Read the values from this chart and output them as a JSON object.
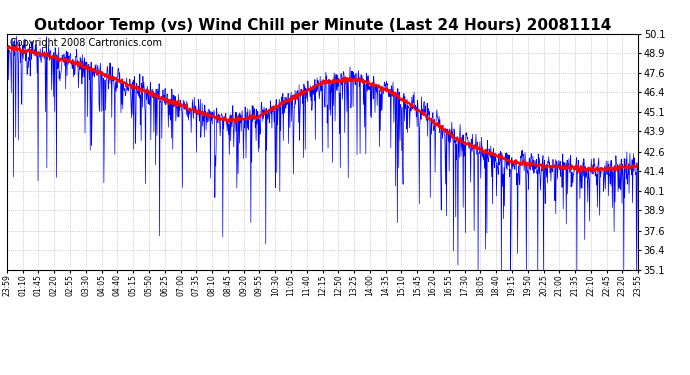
{
  "title": "Outdoor Temp (vs) Wind Chill per Minute (Last 24 Hours) 20081114",
  "copyright_text": "Copyright 2008 Cartronics.com",
  "ylim": [
    35.1,
    50.1
  ],
  "yticks": [
    35.1,
    36.4,
    37.6,
    38.9,
    40.1,
    41.4,
    42.6,
    43.9,
    45.1,
    46.4,
    47.6,
    48.9,
    50.1
  ],
  "xtick_labels": [
    "23:59",
    "01:10",
    "01:45",
    "02:20",
    "02:55",
    "03:30",
    "04:05",
    "04:40",
    "05:15",
    "05:50",
    "06:25",
    "07:00",
    "07:35",
    "08:10",
    "08:45",
    "09:20",
    "09:55",
    "10:30",
    "11:05",
    "11:40",
    "12:15",
    "12:50",
    "13:25",
    "14:00",
    "14:35",
    "15:10",
    "15:45",
    "16:20",
    "16:55",
    "17:30",
    "18:05",
    "18:40",
    "19:15",
    "19:50",
    "20:25",
    "21:00",
    "21:35",
    "22:10",
    "22:45",
    "23:20",
    "23:55"
  ],
  "background_color": "#ffffff",
  "grid_color": "#aaaaaa",
  "blue_line_color": "#0000ff",
  "red_line_color": "#ff0000",
  "title_fontsize": 11,
  "copyright_fontsize": 7,
  "red_base_x": [
    0,
    50,
    150,
    250,
    370,
    430,
    500,
    570,
    650,
    720,
    800,
    870,
    950,
    1020,
    1100,
    1150,
    1200,
    1260,
    1310,
    1360,
    1440
  ],
  "red_base_y": [
    49.2,
    49.0,
    48.3,
    47.2,
    45.8,
    45.2,
    44.6,
    44.8,
    46.0,
    47.0,
    47.2,
    46.5,
    45.0,
    43.5,
    42.5,
    42.0,
    41.8,
    41.6,
    41.5,
    41.5,
    41.7
  ],
  "blue_base_x": [
    0,
    50,
    150,
    250,
    370,
    430,
    500,
    570,
    650,
    720,
    800,
    870,
    950,
    1020,
    1100,
    1150,
    1200,
    1260,
    1310,
    1360,
    1440
  ],
  "blue_base_y": [
    49.2,
    49.0,
    48.3,
    47.2,
    45.8,
    45.2,
    44.6,
    44.8,
    46.0,
    47.0,
    47.2,
    46.5,
    45.0,
    43.5,
    42.5,
    42.0,
    41.8,
    41.6,
    41.5,
    41.5,
    41.7
  ]
}
